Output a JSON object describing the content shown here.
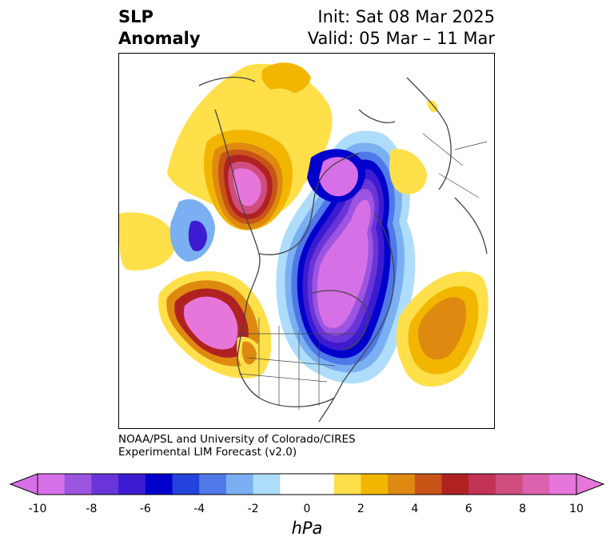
{
  "header": {
    "field_line1": "SLP",
    "field_line2": "Anomaly",
    "init_text": "Init: Sat 08 Mar 2025",
    "valid_text": "Valid: 05 Mar – 11 Mar"
  },
  "credit": {
    "line1": "NOAA/PSL and University of Colorado/CIRES",
    "line2": "Experimental LIM Forecast (v2.0)"
  },
  "colorbar": {
    "unit": "hPa",
    "ticks": [
      "-10",
      "-8",
      "-6",
      "-4",
      "-2",
      "0",
      "2",
      "4",
      "6",
      "8",
      "10"
    ],
    "colors": [
      "#d670e6",
      "#9b55e0",
      "#6a35d8",
      "#3c1bd0",
      "#0000cc",
      "#2442dc",
      "#4f78e8",
      "#7ab0f2",
      "#aedcfb",
      "#ffffff",
      "#ffffff",
      "#ffe04a",
      "#f2b600",
      "#de8a10",
      "#c85418",
      "#b02222",
      "#c23355",
      "#d04d7f",
      "#da62ae",
      "#e676da"
    ]
  },
  "colors": {
    "strong_positive": "#e676da",
    "positive": "#b02222",
    "weak_positive": "#ffe04a",
    "weak_negative": "#aedcfb",
    "negative": "#0000cc",
    "strong_negative": "#d670e6"
  }
}
